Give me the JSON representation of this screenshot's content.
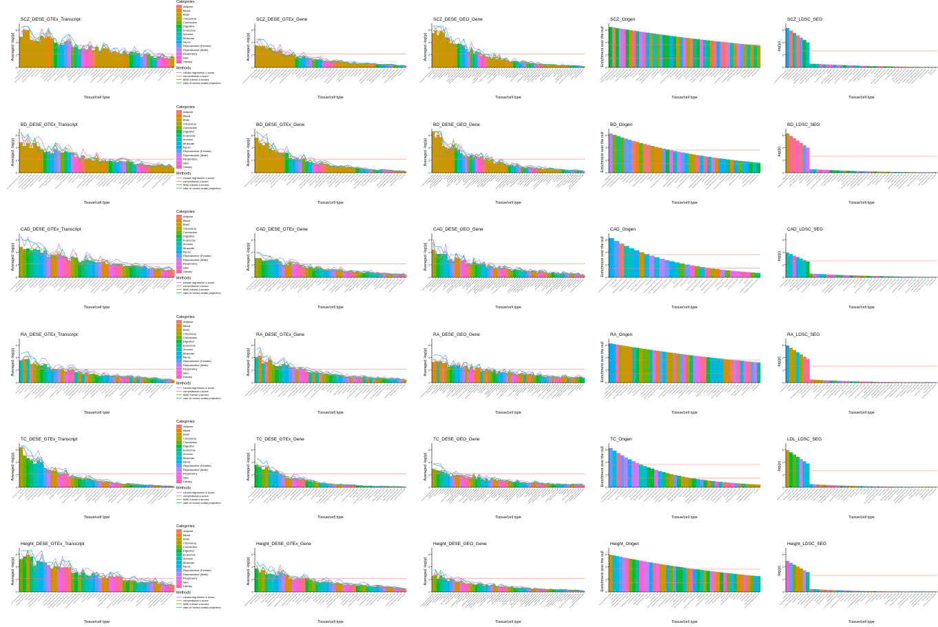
{
  "colors": {
    "Adipose": "#F8766D",
    "Blood": "#E58700",
    "Brain": "#C99800",
    "Circulatory": "#A3A500",
    "Connective": "#6BB100",
    "Digestive": "#00BA38",
    "Endocrine": "#00BF7D",
    "Immune": "#00C0AF",
    "Muscular": "#00BCD8",
    "Nerve": "#00B0F6",
    "Reproductive (Female)": "#619CFF",
    "Reproductive (Male)": "#B983FF",
    "Respiratory": "#E76BF3",
    "Skin": "#FD61D1",
    "Urinary": "#FF67A4",
    "method1": "#C77CFF",
    "method2": "#F8766D",
    "method3": "#7CAE00",
    "method4": "#00BFC4",
    "threshold": "#F08080",
    "axis": "#000000"
  },
  "legend": {
    "categories_title": "Categories",
    "categories": [
      "Adipose",
      "Blood",
      "Brain",
      "Circulatory",
      "Connective",
      "Digestive",
      "Endocrine",
      "Immune",
      "Muscular",
      "Nerve",
      "Reproductive (Female)",
      "Reproductive (Male)",
      "Respiratory",
      "Skin",
      "Urinary"
    ],
    "methods_title": "Methods",
    "methods": [
      "robust-regression z-score",
      "conventional z-score",
      "MAD robust z-scores",
      "ratio of vector-scalar projection"
    ]
  },
  "chart_data": {
    "type": "bar",
    "xlabel": "Tissue/cell type",
    "panels": [
      {
        "title": "SCZ_DESE_GTEx_Transcript",
        "ylabel": "Averaged -log(p)",
        "kind": "dese",
        "nbars": 45,
        "peak": 0.85,
        "decay": 1.3,
        "pal": [
          2,
          2,
          2,
          2,
          2,
          2,
          2,
          2,
          1,
          3,
          5,
          7,
          9,
          10,
          11,
          4,
          6,
          8,
          12,
          13,
          14,
          0
        ]
      },
      {
        "title": "SCZ_DESE_GTEx_Gene",
        "ylabel": "Averaged -log(p)",
        "kind": "dese",
        "nbars": 45,
        "peak": 0.55,
        "decay": 2.5,
        "pal": [
          2,
          2,
          2,
          2,
          2,
          2,
          2,
          2,
          2,
          2,
          1,
          3,
          5,
          7,
          9,
          10,
          11,
          4,
          6,
          8,
          12,
          13,
          14,
          0
        ]
      },
      {
        "title": "SCZ_DESE_GEO_Gene",
        "ylabel": "Averaged -log(p)",
        "kind": "dese",
        "nbars": 60,
        "peak": 0.95,
        "decay": 3.5,
        "pal": [
          2,
          2,
          2,
          2,
          2,
          2,
          2,
          2,
          1,
          3,
          5,
          7,
          9,
          10,
          11,
          4,
          6,
          8,
          12,
          13,
          14,
          0
        ]
      },
      {
        "title": "SCZ_Ongen",
        "ylabel": "Enrichment over the null",
        "kind": "ongen",
        "nbars": 45,
        "peak": 0.98,
        "decay": 0.45
      },
      {
        "title": "SCZ_LDSC_SEG",
        "ylabel": "-log(p)",
        "kind": "ldsc",
        "nbars": 45,
        "peak": 0.95,
        "decay": 1.0
      },
      {
        "title": "BD_DESE_GTEx_Transcript",
        "ylabel": "Averaged -log(p)",
        "kind": "dese",
        "nbars": 45,
        "peak": 0.75,
        "decay": 1.6,
        "pal": [
          2,
          2,
          2,
          2,
          2,
          1,
          3,
          5,
          7,
          9,
          10,
          11,
          4,
          6,
          8,
          12,
          13,
          14,
          0
        ]
      },
      {
        "title": "BD_DESE_GTEx_Gene",
        "ylabel": "Averaged -log(p)",
        "kind": "dese",
        "nbars": 45,
        "peak": 0.8,
        "decay": 3.0,
        "pal": [
          2,
          2,
          2,
          2,
          2,
          2,
          2,
          1,
          3,
          5,
          7,
          9,
          10,
          11,
          4,
          6,
          8,
          12,
          13,
          14,
          0
        ]
      },
      {
        "title": "BD_DESE_GEO_Gene",
        "ylabel": "Averaged -log(p)",
        "kind": "dese",
        "nbars": 60,
        "peak": 0.9,
        "decay": 3.0,
        "pal": [
          2,
          2,
          2,
          2,
          2,
          2,
          2,
          1,
          3,
          5,
          7,
          9,
          10,
          11,
          4,
          6,
          8,
          12,
          13,
          14,
          0
        ]
      },
      {
        "title": "BD_Ongen",
        "ylabel": "Enrichment over the null",
        "kind": "ongen",
        "nbars": 40,
        "peak": 0.95,
        "decay": 1.2
      },
      {
        "title": "BD_LDSC_SEG",
        "ylabel": "-log(p)",
        "kind": "ldsc",
        "nbars": 45,
        "peak": 0.95,
        "decay": 1.2
      },
      {
        "title": "CAD_DESE_GTEx_Transcript",
        "ylabel": "Averaged -log(p)",
        "kind": "dese",
        "nbars": 45,
        "peak": 0.7,
        "decay": 1.3,
        "pal": [
          3,
          4,
          5,
          6,
          7,
          8,
          9,
          10,
          11,
          1,
          2,
          12,
          13,
          14,
          0
        ]
      },
      {
        "title": "CAD_DESE_GTEx_Gene",
        "ylabel": "Averaged -log(p)",
        "kind": "dese",
        "nbars": 45,
        "peak": 0.5,
        "decay": 2.0,
        "pal": [
          3,
          4,
          5,
          6,
          7,
          8,
          9,
          10,
          11,
          1,
          2,
          12,
          13,
          14,
          0
        ]
      },
      {
        "title": "CAD_DESE_GEO_Gene",
        "ylabel": "Averaged -log(p)",
        "kind": "dese",
        "nbars": 60,
        "peak": 0.6,
        "decay": 2.2,
        "pal": [
          3,
          4,
          5,
          6,
          7,
          8,
          9,
          10,
          11,
          1,
          2,
          12,
          13,
          14,
          0
        ]
      },
      {
        "title": "CAD_Ongen",
        "ylabel": "Enrichment over the null",
        "kind": "ongen",
        "nbars": 30,
        "peak": 0.95,
        "decay": 2.0
      },
      {
        "title": "CAD_LDSC_SEG",
        "ylabel": "-log(p)",
        "kind": "ldsc",
        "nbars": 45,
        "peak": 0.6,
        "decay": 1.0
      },
      {
        "title": "RA_DESE_GTEx_Transcript",
        "ylabel": "Averaged -log(p)",
        "kind": "dese",
        "nbars": 45,
        "peak": 0.55,
        "decay": 2.0,
        "pal": [
          7,
          1,
          7,
          0,
          3,
          4,
          5,
          6,
          8,
          9,
          10,
          11,
          2,
          12,
          13,
          14
        ]
      },
      {
        "title": "RA_DESE_GTEx_Gene",
        "ylabel": "Averaged -log(p)",
        "kind": "dese",
        "nbars": 45,
        "peak": 0.6,
        "decay": 2.2,
        "pal": [
          7,
          1,
          7,
          0,
          3,
          4,
          5,
          6,
          8,
          9,
          10,
          11,
          2,
          12,
          13,
          14
        ]
      },
      {
        "title": "RA_DESE_GEO_Gene",
        "ylabel": "Averaged -log(p)",
        "kind": "dese",
        "nbars": 60,
        "peak": 0.5,
        "decay": 1.5,
        "pal": [
          1,
          1,
          7,
          1,
          0,
          3,
          4,
          5,
          6,
          8,
          9,
          10,
          11,
          2,
          12,
          13,
          14
        ]
      },
      {
        "title": "RA_Ongen",
        "ylabel": "Enrichment over the null",
        "kind": "ongen",
        "nbars": 45,
        "peak": 0.95,
        "decay": 0.5
      },
      {
        "title": "RA_LDSC_SEG",
        "ylabel": "-log(p)",
        "kind": "ldsc",
        "nbars": 45,
        "peak": 0.9,
        "decay": 2.0
      },
      {
        "title": "TC_DESE_GTEx_Transcript",
        "ylabel": "Averaged -log(p)",
        "kind": "dese",
        "nbars": 45,
        "peak": 0.9,
        "decay": 3.5,
        "pal": [
          3,
          4,
          5,
          6,
          7,
          8,
          9,
          10,
          11,
          1,
          2,
          12,
          13,
          14,
          0
        ]
      },
      {
        "title": "TC_DESE_GTEx_Gene",
        "ylabel": "Averaged -log(p)",
        "kind": "dese",
        "nbars": 45,
        "peak": 0.6,
        "decay": 4.0,
        "pal": [
          5,
          6,
          4,
          3,
          7,
          8,
          9,
          10,
          11,
          1,
          2,
          12,
          13,
          14,
          0
        ]
      },
      {
        "title": "TC_DESE_GEO_Gene",
        "ylabel": "Averaged -log(p)",
        "kind": "dese",
        "nbars": 60,
        "peak": 0.4,
        "decay": 2.0,
        "pal": [
          3,
          4,
          5,
          6,
          7,
          8,
          9,
          10,
          11,
          1,
          2,
          12,
          13,
          14,
          0
        ]
      },
      {
        "title": "TC_Ongen",
        "ylabel": "Enrichment over the null",
        "kind": "ongen",
        "nbars": 40,
        "peak": 0.95,
        "decay": 2.5
      },
      {
        "title": "LDL_LDSC_SEG",
        "ylabel": "-log(p)",
        "kind": "ldsc",
        "nbars": 45,
        "peak": 0.9,
        "decay": 2.0
      },
      {
        "title": "Height_DESE_GTEx_Transcript",
        "ylabel": "Averaged -log(p)",
        "kind": "dese",
        "nbars": 45,
        "peak": 0.85,
        "decay": 1.5,
        "pal": [
          4,
          5,
          3,
          6,
          7,
          8,
          9,
          10,
          11,
          1,
          2,
          12,
          13,
          14,
          0
        ]
      },
      {
        "title": "Height_DESE_GTEx_Gene",
        "ylabel": "Averaged -log(p)",
        "kind": "dese",
        "nbars": 45,
        "peak": 0.55,
        "decay": 1.8,
        "pal": [
          5,
          4,
          3,
          6,
          7,
          8,
          9,
          10,
          11,
          1,
          2,
          12,
          13,
          14,
          0
        ]
      },
      {
        "title": "Height_DESE_GEO_Gene",
        "ylabel": "Averaged -log(p)",
        "kind": "dese",
        "nbars": 60,
        "peak": 0.4,
        "decay": 2.5,
        "pal": [
          3,
          4,
          5,
          6,
          7,
          8,
          9,
          10,
          11,
          1,
          2,
          12,
          13,
          14,
          0
        ]
      },
      {
        "title": "Height_Ongen",
        "ylabel": "Enrichment over the null",
        "kind": "ongen",
        "nbars": 45,
        "peak": 0.9,
        "decay": 0.7
      },
      {
        "title": "Height_LDSC_SEG",
        "ylabel": "-log(p)",
        "kind": "ldsc",
        "nbars": 45,
        "peak": 0.75,
        "decay": 2.5
      }
    ]
  }
}
